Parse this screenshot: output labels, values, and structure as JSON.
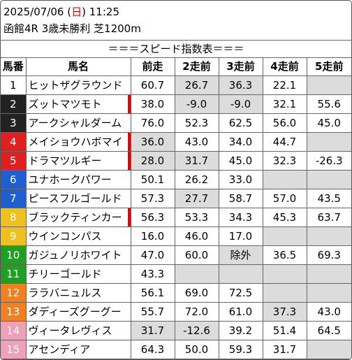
{
  "header": {
    "date": "2025/07/06",
    "weekday_open": "(",
    "weekday": "日",
    "weekday_close": ")",
    "time": "11:25",
    "race": "函館4R 3歳未勝利 芝1200m"
  },
  "title": "＝＝＝スピード指数表＝＝＝",
  "columns": [
    "馬番",
    "馬名",
    "前走",
    "2走前",
    "3走前",
    "4走前",
    "5走前"
  ],
  "frame_colors": {
    "1": {
      "bg": "#ffffff",
      "fg": "#000000"
    },
    "2": {
      "bg": "#222222",
      "fg": "#ffffff"
    },
    "3": {
      "bg": "#e02020",
      "fg": "#ffffff"
    },
    "4": {
      "bg": "#1f5fd0",
      "fg": "#ffffff"
    },
    "5": {
      "bg": "#f0c020",
      "fg": "#ffffff"
    },
    "6": {
      "bg": "#20a020",
      "fg": "#ffffff"
    },
    "7": {
      "bg": "#f08020",
      "fg": "#ffffff"
    },
    "8": {
      "bg": "#f0a0b8",
      "fg": "#ffffff"
    }
  },
  "horses": [
    {
      "no": "1",
      "frame": "1",
      "name": "ヒットザグラウンド",
      "mark": false,
      "v": [
        "60.7",
        "26.7",
        "36.3",
        "22.1",
        ""
      ],
      "g": [
        false,
        true,
        true,
        false,
        true
      ]
    },
    {
      "no": "2",
      "frame": "2",
      "name": "ズットマツモト",
      "mark": true,
      "v": [
        "38.0",
        "-9.0",
        "-9.0",
        "32.1",
        "55.6"
      ],
      "g": [
        false,
        true,
        true,
        false,
        false
      ]
    },
    {
      "no": "3",
      "frame": "2",
      "name": "アークシャルダーム",
      "mark": false,
      "v": [
        "76.0",
        "52.3",
        "62.5",
        "56.0",
        "45.0"
      ],
      "g": [
        false,
        false,
        false,
        false,
        false
      ]
    },
    {
      "no": "4",
      "frame": "3",
      "name": "メイショウハボマイ",
      "mark": true,
      "v": [
        "36.0",
        "43.0",
        "34.0",
        "44.7",
        ""
      ],
      "g": [
        true,
        false,
        false,
        false,
        true
      ]
    },
    {
      "no": "5",
      "frame": "3",
      "name": "ドラマツルギー",
      "mark": true,
      "v": [
        "28.0",
        "31.7",
        "45.0",
        "32.3",
        "-26.3"
      ],
      "g": [
        true,
        true,
        false,
        false,
        false
      ]
    },
    {
      "no": "6",
      "frame": "4",
      "name": "ユナホークパワー",
      "mark": false,
      "v": [
        "50.1",
        "26.2",
        "33.0",
        "",
        ""
      ],
      "g": [
        false,
        false,
        false,
        true,
        true
      ]
    },
    {
      "no": "7",
      "frame": "4",
      "name": "ピースフルゴールド",
      "mark": false,
      "v": [
        "57.3",
        "27.7",
        "58.7",
        "57.0",
        "43.5"
      ],
      "g": [
        false,
        true,
        false,
        false,
        false
      ]
    },
    {
      "no": "8",
      "frame": "5",
      "name": "ブラックティンカー",
      "mark": true,
      "v": [
        "56.3",
        "53.3",
        "34.3",
        "45.3",
        "63.7"
      ],
      "g": [
        false,
        false,
        false,
        false,
        false
      ]
    },
    {
      "no": "9",
      "frame": "5",
      "name": "ウインコンパス",
      "mark": false,
      "v": [
        "16.0",
        "46.0",
        "17.0",
        "",
        ""
      ],
      "g": [
        false,
        false,
        false,
        true,
        true
      ]
    },
    {
      "no": "10",
      "frame": "6",
      "name": "ガジュノリホワイト",
      "mark": false,
      "v": [
        "47.0",
        "60.0",
        "除外",
        "36.5",
        "69.3"
      ],
      "g": [
        false,
        false,
        true,
        false,
        false
      ]
    },
    {
      "no": "11",
      "frame": "6",
      "name": "チリーゴールド",
      "mark": false,
      "v": [
        "43.3",
        "",
        "",
        "",
        ""
      ],
      "g": [
        false,
        true,
        true,
        true,
        true
      ]
    },
    {
      "no": "12",
      "frame": "7",
      "name": "ララバニュルス",
      "mark": false,
      "v": [
        "56.1",
        "69.0",
        "72.5",
        "",
        ""
      ],
      "g": [
        false,
        false,
        false,
        true,
        true
      ]
    },
    {
      "no": "13",
      "frame": "7",
      "name": "ダディーズグーグー",
      "mark": false,
      "v": [
        "55.7",
        "72.0",
        "61.0",
        "37.3",
        "43.0"
      ],
      "g": [
        false,
        false,
        false,
        true,
        false
      ]
    },
    {
      "no": "14",
      "frame": "8",
      "name": "ヴィータレヴィス",
      "mark": false,
      "v": [
        "31.7",
        "-12.6",
        "39.2",
        "51.4",
        "64.5"
      ],
      "g": [
        true,
        true,
        false,
        false,
        false
      ]
    },
    {
      "no": "15",
      "frame": "8",
      "name": "アセンディア",
      "mark": false,
      "v": [
        "64.3",
        "50.0",
        "59.3",
        "31.7",
        ""
      ],
      "g": [
        false,
        false,
        false,
        false,
        true
      ]
    }
  ]
}
